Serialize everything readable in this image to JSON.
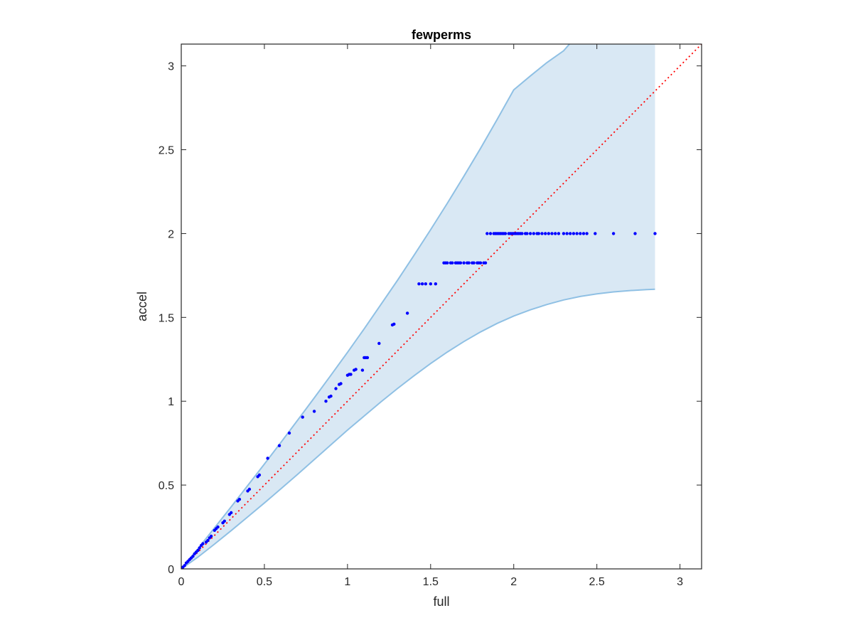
{
  "chart_data": {
    "type": "scatter",
    "title": "fewperms",
    "xlabel": "full",
    "ylabel": "accel",
    "xlim": [
      0,
      3.13
    ],
    "ylim": [
      0,
      3.13
    ],
    "xticks": [
      0,
      0.5,
      1,
      1.5,
      2,
      2.5,
      3
    ],
    "yticks": [
      0,
      0.5,
      1,
      1.5,
      2,
      2.5,
      3
    ],
    "xtick_labels": [
      "0",
      "0.5",
      "1",
      "1.5",
      "2",
      "2.5",
      "3"
    ],
    "ytick_labels": [
      "0",
      "0.5",
      "1",
      "1.5",
      "2",
      "2.5",
      "3"
    ],
    "grid": false,
    "colors": {
      "points": "#0000ff",
      "band_fill": "#d9e8f4",
      "band_edge": "#8fc0e4",
      "reference_line": "#ff0000",
      "axes": "#262626"
    },
    "reference_line": {
      "x": [
        0,
        3.13
      ],
      "y": [
        0,
        3.13
      ],
      "style": "dotted"
    },
    "band": {
      "upper": {
        "x": [
          0,
          0.1,
          0.2,
          0.3,
          0.4,
          0.5,
          0.6,
          0.7,
          0.8,
          0.9,
          1.0,
          1.1,
          1.2,
          1.3,
          1.4,
          1.5,
          1.6,
          1.7,
          1.8,
          1.9,
          2.0,
          2.1,
          2.2,
          2.3,
          2.335
        ],
        "y": [
          0,
          0.12,
          0.245,
          0.37,
          0.497,
          0.625,
          0.755,
          0.887,
          1.02,
          1.155,
          1.292,
          1.432,
          1.575,
          1.72,
          1.87,
          2.023,
          2.18,
          2.342,
          2.508,
          2.68,
          2.857,
          2.94,
          3.02,
          3.09,
          3.13
        ]
      },
      "lower": {
        "x": [
          0,
          0.1,
          0.2,
          0.3,
          0.4,
          0.5,
          0.6,
          0.7,
          0.8,
          0.9,
          1.0,
          1.1,
          1.2,
          1.3,
          1.4,
          1.5,
          1.6,
          1.7,
          1.8,
          1.9,
          2.0,
          2.1,
          2.2,
          2.3,
          2.4,
          2.5,
          2.6,
          2.7,
          2.8,
          2.85
        ],
        "y": [
          0,
          0.07,
          0.148,
          0.228,
          0.31,
          0.393,
          0.478,
          0.564,
          0.652,
          0.74,
          0.828,
          0.912,
          0.995,
          1.075,
          1.152,
          1.225,
          1.293,
          1.356,
          1.413,
          1.464,
          1.508,
          1.545,
          1.577,
          1.604,
          1.625,
          1.64,
          1.652,
          1.66,
          1.666,
          1.668
        ]
      },
      "right_edge_x": 2.85,
      "top_edge_y": 3.13
    },
    "series": [
      {
        "x": [
          0.0,
          0.01,
          0.02,
          0.03,
          0.04,
          0.05,
          0.06,
          0.07,
          0.08,
          0.09,
          0.1,
          0.11,
          0.12,
          0.13,
          0.15,
          0.16,
          0.17,
          0.18,
          0.2,
          0.21,
          0.22,
          0.25,
          0.26,
          0.29,
          0.3,
          0.34,
          0.35,
          0.4,
          0.41,
          0.46,
          0.47,
          0.52,
          0.59,
          0.65,
          0.73,
          0.8,
          0.87,
          0.89,
          0.9,
          0.93,
          0.95,
          0.96,
          1.0,
          1.01,
          1.02,
          1.04,
          1.05,
          1.09,
          1.1,
          1.11,
          1.12,
          1.19,
          1.27,
          1.28,
          1.36,
          1.43,
          1.45,
          1.47,
          1.5,
          1.53,
          1.58,
          1.59,
          1.6,
          1.62,
          1.63,
          1.65,
          1.66,
          1.67,
          1.68,
          1.7,
          1.72,
          1.73,
          1.75,
          1.76,
          1.78,
          1.79,
          1.8,
          1.82,
          1.83,
          1.84,
          1.86,
          1.88,
          1.89,
          1.9,
          1.91,
          1.92,
          1.93,
          1.94,
          1.95,
          1.97,
          1.98,
          1.99,
          2.0,
          2.01,
          2.02,
          2.03,
          2.04,
          2.05,
          2.07,
          2.08,
          2.1,
          2.12,
          2.14,
          2.15,
          2.17,
          2.19,
          2.21,
          2.23,
          2.25,
          2.27,
          2.3,
          2.32,
          2.34,
          2.36,
          2.38,
          2.4,
          2.42,
          2.44,
          2.49,
          2.6,
          2.73,
          2.85
        ],
        "y": [
          0.0,
          0.01,
          0.02,
          0.035,
          0.045,
          0.055,
          0.065,
          0.075,
          0.09,
          0.1,
          0.11,
          0.125,
          0.14,
          0.15,
          0.16,
          0.17,
          0.185,
          0.195,
          0.23,
          0.24,
          0.25,
          0.275,
          0.285,
          0.325,
          0.335,
          0.405,
          0.415,
          0.465,
          0.475,
          0.55,
          0.56,
          0.66,
          0.735,
          0.81,
          0.905,
          0.94,
          1.0,
          1.025,
          1.03,
          1.075,
          1.1,
          1.105,
          1.155,
          1.16,
          1.16,
          1.185,
          1.19,
          1.185,
          1.26,
          1.26,
          1.26,
          1.345,
          1.455,
          1.46,
          1.525,
          1.7,
          1.7,
          1.7,
          1.7,
          1.7,
          1.825,
          1.825,
          1.825,
          1.825,
          1.825,
          1.825,
          1.825,
          1.825,
          1.825,
          1.825,
          1.825,
          1.825,
          1.825,
          1.825,
          1.825,
          1.825,
          1.825,
          1.825,
          1.825,
          2.0,
          2.0,
          2.0,
          2.0,
          2.0,
          2.0,
          2.0,
          2.0,
          2.0,
          2.0,
          2.0,
          2.0,
          2.0,
          2.0,
          2.0,
          2.0,
          2.0,
          2.0,
          2.0,
          2.0,
          2.0,
          2.0,
          2.0,
          2.0,
          2.0,
          2.0,
          2.0,
          2.0,
          2.0,
          2.0,
          2.0,
          2.0,
          2.0,
          2.0,
          2.0,
          2.0,
          2.0,
          2.0,
          2.0,
          2.0,
          2.0,
          2.0,
          2.0
        ]
      }
    ]
  }
}
